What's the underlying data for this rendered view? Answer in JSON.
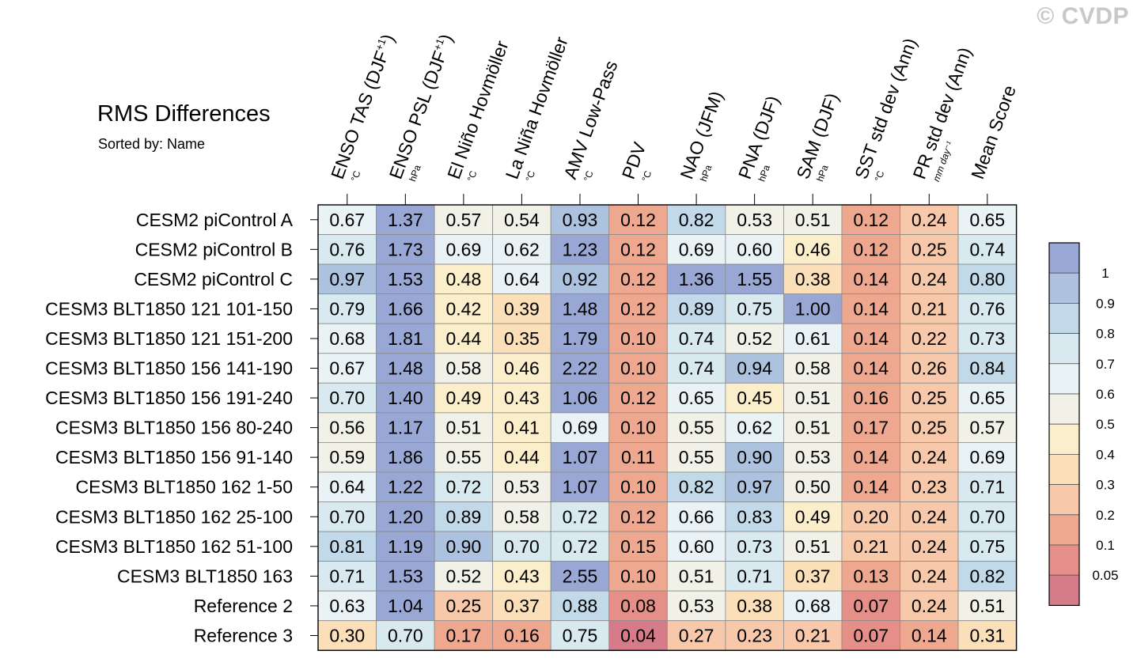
{
  "watermark": "© CVDP",
  "title": "RMS Differences",
  "subtitle": "Sorted by: Name",
  "chart_data": {
    "type": "heatmap",
    "title": "RMS Differences",
    "subtitle": "Sorted by: Name",
    "columns": [
      {
        "name": "ENSO TAS (DJF",
        "sup": "+1",
        "close": ")",
        "unit": "°C"
      },
      {
        "name": "ENSO PSL (DJF",
        "sup": "+1",
        "close": ")",
        "unit": "hPa"
      },
      {
        "name": "El Niño Hovmöller",
        "sup": "",
        "close": "",
        "unit": "°C"
      },
      {
        "name": "La Niña Hovmöller",
        "sup": "",
        "close": "",
        "unit": "°C"
      },
      {
        "name": "AMV Low-Pass",
        "sup": "",
        "close": "",
        "unit": "°C"
      },
      {
        "name": "PDV",
        "sup": "",
        "close": "",
        "unit": "°C"
      },
      {
        "name": "NAO (JFM)",
        "sup": "",
        "close": "",
        "unit": "hPa"
      },
      {
        "name": "PNA (DJF)",
        "sup": "",
        "close": "",
        "unit": "hPa"
      },
      {
        "name": "SAM (DJF)",
        "sup": "",
        "close": "",
        "unit": "hPa"
      },
      {
        "name": "SST std dev (Ann)",
        "sup": "",
        "close": "",
        "unit": "°C"
      },
      {
        "name": "PR std dev (Ann)",
        "sup": "",
        "close": "",
        "unit": "mm day⁻¹"
      },
      {
        "name": "Mean Score",
        "sup": "",
        "close": "",
        "unit": ""
      }
    ],
    "rows": [
      {
        "name": "CESM2 piControl A",
        "values": [
          "0.67",
          "1.37",
          "0.57",
          "0.54",
          "0.93",
          "0.12",
          "0.82",
          "0.53",
          "0.51",
          "0.12",
          "0.24",
          "0.65"
        ]
      },
      {
        "name": "CESM2 piControl B",
        "values": [
          "0.76",
          "1.73",
          "0.69",
          "0.62",
          "1.23",
          "0.12",
          "0.69",
          "0.60",
          "0.46",
          "0.12",
          "0.25",
          "0.74"
        ]
      },
      {
        "name": "CESM2 piControl C",
        "values": [
          "0.97",
          "1.53",
          "0.48",
          "0.64",
          "0.92",
          "0.12",
          "1.36",
          "1.55",
          "0.38",
          "0.14",
          "0.24",
          "0.80"
        ]
      },
      {
        "name": "CESM3 BLT1850 121 101-150",
        "values": [
          "0.79",
          "1.66",
          "0.42",
          "0.39",
          "1.48",
          "0.12",
          "0.89",
          "0.75",
          "1.00",
          "0.14",
          "0.21",
          "0.76"
        ]
      },
      {
        "name": "CESM3 BLT1850 121 151-200",
        "values": [
          "0.68",
          "1.81",
          "0.44",
          "0.35",
          "1.79",
          "0.10",
          "0.74",
          "0.52",
          "0.61",
          "0.14",
          "0.22",
          "0.73"
        ]
      },
      {
        "name": "CESM3 BLT1850 156 141-190",
        "values": [
          "0.67",
          "1.48",
          "0.58",
          "0.46",
          "2.22",
          "0.10",
          "0.74",
          "0.94",
          "0.58",
          "0.14",
          "0.26",
          "0.84"
        ]
      },
      {
        "name": "CESM3 BLT1850 156 191-240",
        "values": [
          "0.70",
          "1.40",
          "0.49",
          "0.43",
          "1.06",
          "0.12",
          "0.65",
          "0.45",
          "0.51",
          "0.16",
          "0.25",
          "0.65"
        ]
      },
      {
        "name": "CESM3 BLT1850 156 80-240",
        "values": [
          "0.56",
          "1.17",
          "0.51",
          "0.41",
          "0.69",
          "0.10",
          "0.55",
          "0.62",
          "0.51",
          "0.17",
          "0.25",
          "0.57"
        ]
      },
      {
        "name": "CESM3 BLT1850 156 91-140",
        "values": [
          "0.59",
          "1.86",
          "0.55",
          "0.44",
          "1.07",
          "0.11",
          "0.55",
          "0.90",
          "0.53",
          "0.14",
          "0.24",
          "0.69"
        ]
      },
      {
        "name": "CESM3 BLT1850 162 1-50",
        "values": [
          "0.64",
          "1.22",
          "0.72",
          "0.53",
          "1.07",
          "0.10",
          "0.82",
          "0.97",
          "0.50",
          "0.14",
          "0.23",
          "0.71"
        ]
      },
      {
        "name": "CESM3 BLT1850 162 25-100",
        "values": [
          "0.70",
          "1.20",
          "0.89",
          "0.58",
          "0.72",
          "0.12",
          "0.66",
          "0.83",
          "0.49",
          "0.20",
          "0.24",
          "0.70"
        ]
      },
      {
        "name": "CESM3 BLT1850 162 51-100",
        "values": [
          "0.81",
          "1.19",
          "0.90",
          "0.70",
          "0.72",
          "0.15",
          "0.60",
          "0.73",
          "0.51",
          "0.21",
          "0.24",
          "0.75"
        ]
      },
      {
        "name": "CESM3 BLT1850 163",
        "values": [
          "0.71",
          "1.53",
          "0.52",
          "0.43",
          "2.55",
          "0.10",
          "0.51",
          "0.71",
          "0.37",
          "0.13",
          "0.24",
          "0.82"
        ]
      },
      {
        "name": "Reference 2",
        "values": [
          "0.63",
          "1.04",
          "0.25",
          "0.37",
          "0.88",
          "0.08",
          "0.53",
          "0.38",
          "0.68",
          "0.07",
          "0.24",
          "0.51"
        ]
      },
      {
        "name": "Reference 3",
        "values": [
          "0.30",
          "0.70",
          "0.17",
          "0.16",
          "0.75",
          "0.04",
          "0.27",
          "0.23",
          "0.21",
          "0.07",
          "0.14",
          "0.31"
        ]
      }
    ],
    "legend": {
      "labels": [
        "1",
        "0.9",
        "0.8",
        "0.7",
        "0.6",
        "0.5",
        "0.4",
        "0.3",
        "0.2",
        "0.1",
        "0.05"
      ],
      "thresholds": [
        1,
        0.9,
        0.8,
        0.7,
        0.6,
        0.5,
        0.4,
        0.3,
        0.2,
        0.1,
        0.05
      ],
      "colors": [
        "#98a7d3",
        "#acc2de",
        "#c1d9e9",
        "#d8eaf0",
        "#e9f2f5",
        "#f1f1e8",
        "#fbeecb",
        "#fadfb8",
        "#f7c8a9",
        "#eea88f",
        "#e68e88",
        "#d67b89"
      ]
    }
  }
}
